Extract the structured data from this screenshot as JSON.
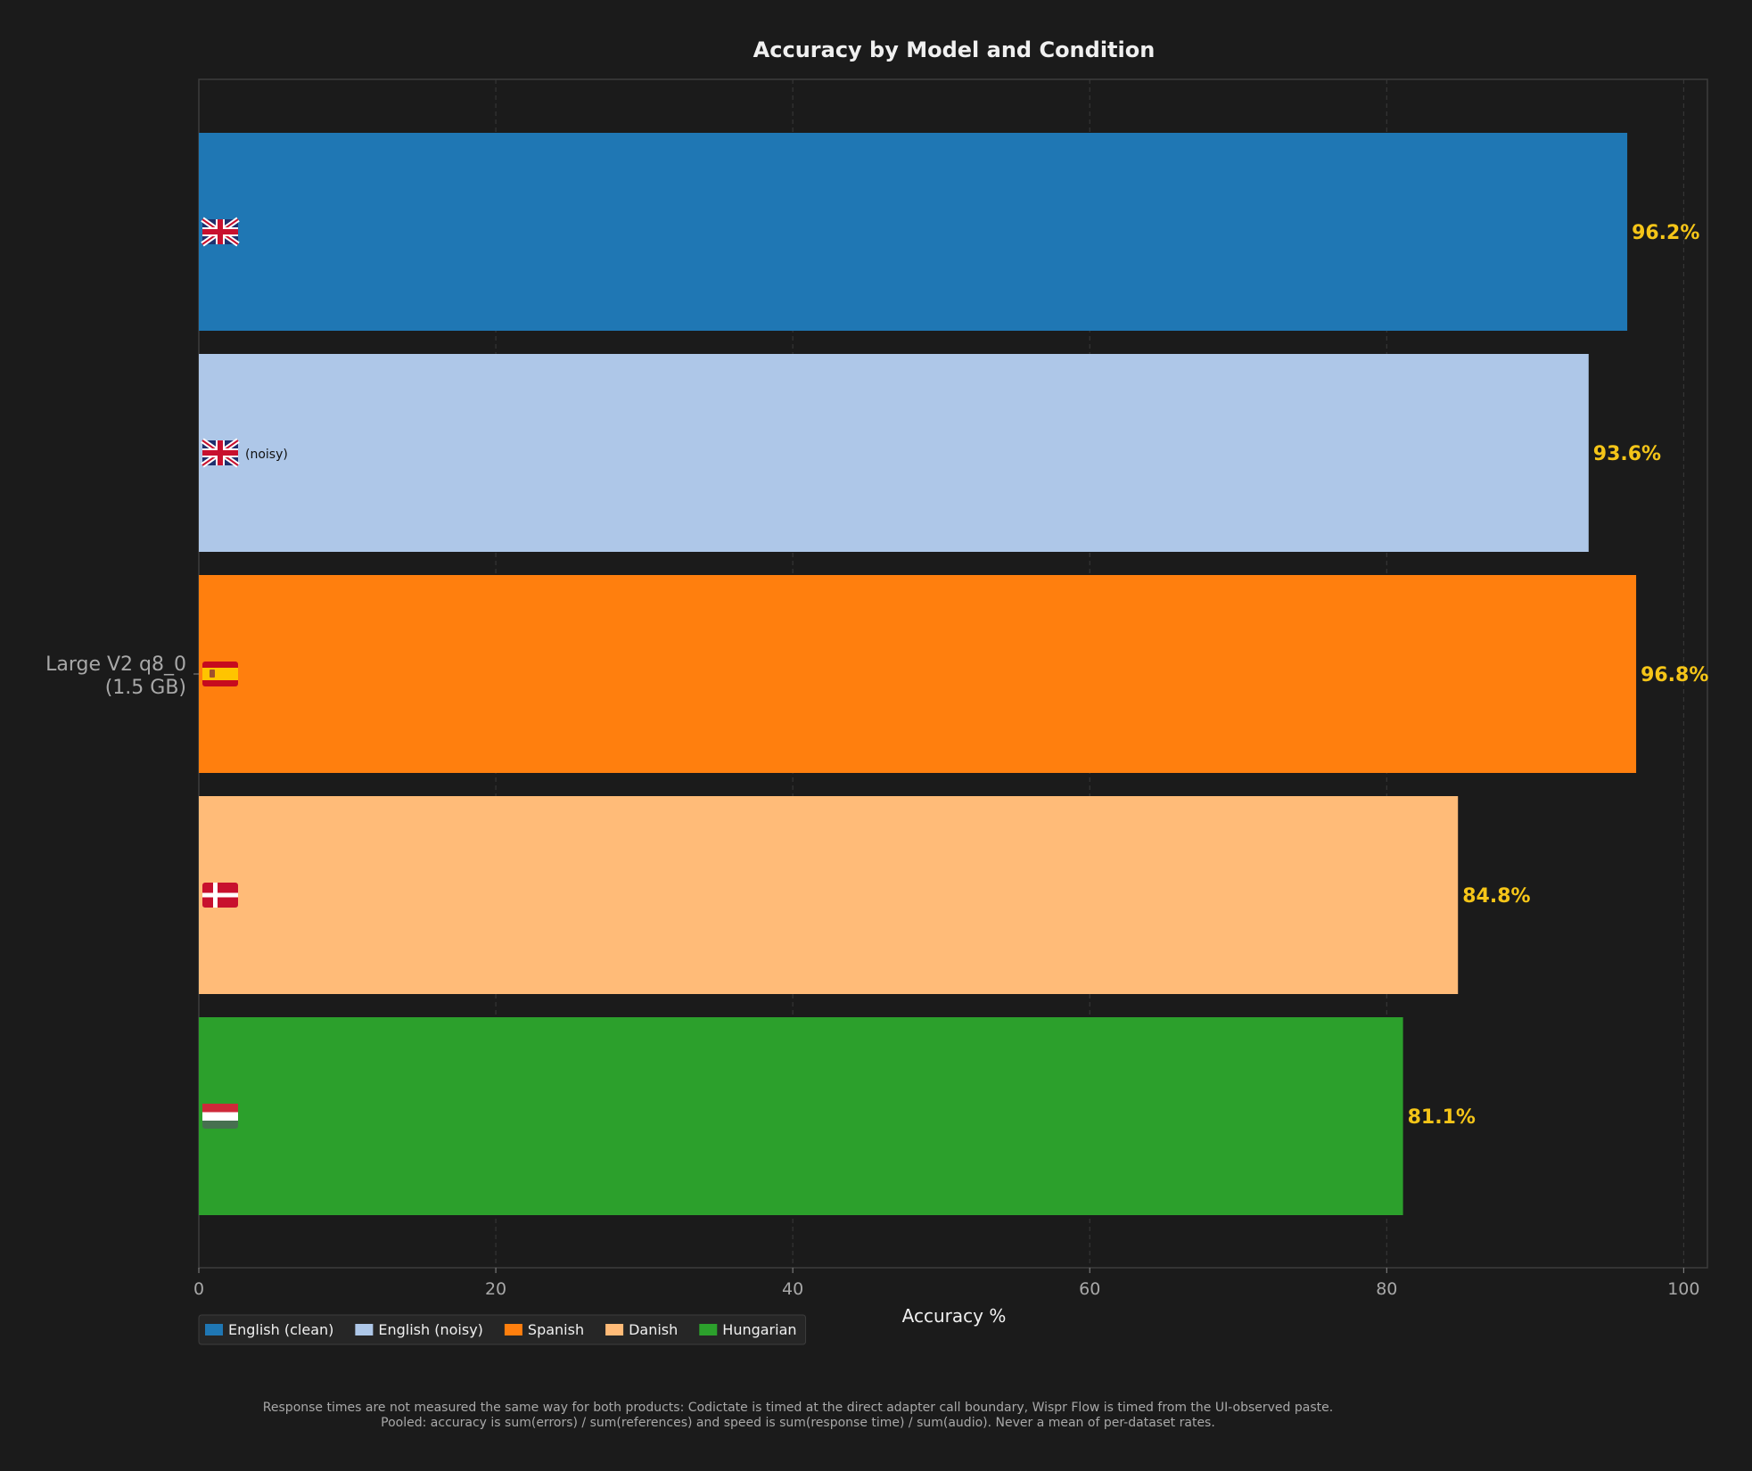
{
  "chart_data": {
    "type": "bar",
    "orientation": "horizontal",
    "title": "Accuracy by Model and Condition",
    "xlabel": "Accuracy %",
    "ylabel": "",
    "xlim": [
      0,
      101.6
    ],
    "x_ticks": [
      0,
      20,
      40,
      60,
      80,
      100
    ],
    "grid": "vertical dashed",
    "legend_position": "bottom-left",
    "category": "Large V2 q8_0\n(1.5 GB)",
    "series": [
      {
        "name": "English (clean)",
        "value": 96.2,
        "value_label": "96.2%",
        "color": "#1f77b4",
        "flag": "flag-uk-icon",
        "inline_label": ""
      },
      {
        "name": "English (noisy)",
        "value": 93.6,
        "value_label": "93.6%",
        "color": "#aec7e8",
        "flag": "flag-uk-icon",
        "inline_label": "(noisy)"
      },
      {
        "name": "Spanish",
        "value": 96.8,
        "value_label": "96.8%",
        "color": "#ff7f0e",
        "flag": "flag-es-icon",
        "inline_label": ""
      },
      {
        "name": "Danish",
        "value": 84.8,
        "value_label": "84.8%",
        "color": "#ffbb78",
        "flag": "flag-dk-icon",
        "inline_label": ""
      },
      {
        "name": "Hungarian",
        "value": 81.1,
        "value_label": "81.1%",
        "color": "#2ca02c",
        "flag": "flag-hu-icon",
        "inline_label": ""
      }
    ],
    "value_label_color": "#f5c518"
  },
  "footnote": {
    "line1": "Response times are not measured the same way for both products: Codictate is timed at the direct adapter call boundary, Wispr Flow is timed from the UI-observed paste.",
    "line2": "Pooled: accuracy is sum(errors) / sum(references) and speed is sum(response time) / sum(audio). Never a mean of per-dataset rates."
  }
}
